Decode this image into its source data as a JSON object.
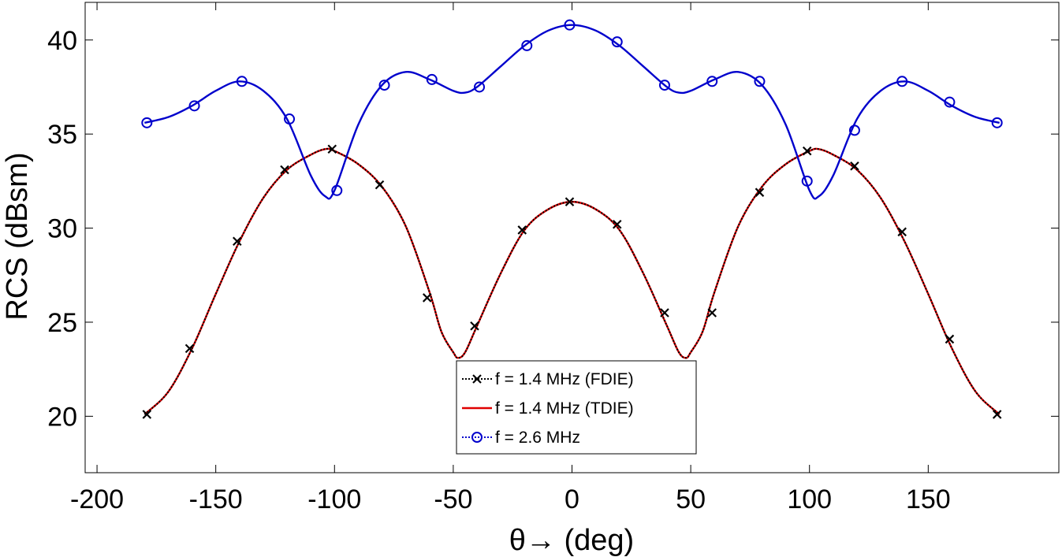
{
  "chart_data": {
    "type": "line",
    "title": "",
    "xlabel": "θ→ (deg)",
    "ylabel": "RCS (dBsm)",
    "xlim": [
      -205,
      205
    ],
    "ylim": [
      17,
      42
    ],
    "xticks": [
      -200,
      -150,
      -100,
      -50,
      0,
      50,
      100,
      150
    ],
    "yticks": [
      20,
      25,
      30,
      35,
      40
    ],
    "xtick_labels": [
      "-200",
      "-150",
      "-100",
      "-50",
      "0",
      "50",
      "100",
      "150"
    ],
    "ytick_labels": [
      "20",
      "25",
      "30",
      "35",
      "40"
    ],
    "grid": false,
    "legend_position": "bottom-center",
    "series": [
      {
        "name": "f = 1.4 MHz (FDIE)",
        "color": "#000000",
        "line_style": "dotted",
        "marker": "x",
        "curve_x": [
          -180,
          -170,
          -160,
          -150,
          -140,
          -130,
          -120,
          -110,
          -104,
          -100,
          -90,
          -80,
          -70,
          -60,
          -55,
          -50,
          -48,
          -45,
          -40,
          -30,
          -20,
          -10,
          0,
          10,
          20,
          30,
          40,
          45,
          48,
          50,
          55,
          60,
          70,
          80,
          90,
          100,
          104,
          110,
          120,
          130,
          140,
          150,
          160,
          170,
          180
        ],
        "curve_y": [
          20.1,
          21.3,
          23.6,
          26.5,
          29.3,
          31.6,
          33.1,
          33.9,
          34.2,
          34.1,
          33.4,
          32.2,
          30.1,
          26.6,
          24.5,
          23.4,
          23.1,
          23.4,
          24.8,
          27.6,
          29.9,
          31.0,
          31.4,
          31.0,
          29.9,
          27.6,
          24.8,
          23.4,
          23.1,
          23.4,
          24.5,
          26.6,
          30.1,
          32.2,
          33.4,
          34.1,
          34.2,
          33.9,
          33.1,
          31.6,
          29.3,
          26.5,
          23.6,
          21.3,
          20.1
        ],
        "marker_x": [
          -179,
          -161,
          -141,
          -121,
          -101,
          -81,
          -61,
          -41,
          -21,
          -1,
          19,
          39,
          59,
          79,
          99,
          119,
          139,
          159,
          179
        ],
        "marker_y": [
          20.1,
          23.6,
          29.3,
          33.1,
          34.2,
          32.3,
          26.3,
          24.8,
          29.9,
          31.4,
          30.2,
          25.5,
          25.5,
          31.9,
          34.1,
          33.3,
          29.8,
          24.1,
          20.1
        ]
      },
      {
        "name": "f = 1.4 MHz (TDIE)",
        "color": "#e00000",
        "line_style": "solid",
        "marker": "none",
        "curve_x": [
          -180,
          -170,
          -160,
          -150,
          -140,
          -130,
          -120,
          -110,
          -104,
          -100,
          -90,
          -80,
          -70,
          -60,
          -55,
          -50,
          -48,
          -45,
          -40,
          -30,
          -20,
          -10,
          0,
          10,
          20,
          30,
          40,
          45,
          48,
          50,
          55,
          60,
          70,
          80,
          90,
          100,
          104,
          110,
          120,
          130,
          140,
          150,
          160,
          170,
          180
        ],
        "curve_y": [
          20.1,
          21.3,
          23.6,
          26.5,
          29.3,
          31.6,
          33.1,
          33.9,
          34.2,
          34.1,
          33.4,
          32.2,
          30.1,
          26.6,
          24.5,
          23.4,
          23.1,
          23.4,
          24.8,
          27.6,
          29.9,
          31.0,
          31.4,
          31.0,
          29.9,
          27.6,
          24.8,
          23.4,
          23.1,
          23.4,
          24.5,
          26.6,
          30.1,
          32.2,
          33.4,
          34.1,
          34.2,
          33.9,
          33.1,
          31.6,
          29.3,
          26.5,
          23.6,
          21.3,
          20.1
        ],
        "marker_x": [],
        "marker_y": []
      },
      {
        "name": "f = 2.6 MHz",
        "color": "#0000cc",
        "line_style": "solid",
        "marker": "o",
        "curve_x": [
          -180,
          -170,
          -160,
          -150,
          -140,
          -130,
          -120,
          -110,
          -104,
          -100,
          -90,
          -80,
          -70,
          -60,
          -50,
          -45,
          -40,
          -30,
          -20,
          -10,
          0,
          10,
          20,
          30,
          40,
          45,
          50,
          60,
          70,
          80,
          90,
          100,
          104,
          110,
          120,
          130,
          140,
          150,
          160,
          170,
          180
        ],
        "curve_y": [
          35.6,
          35.9,
          36.5,
          37.3,
          37.8,
          37.3,
          35.8,
          32.8,
          31.7,
          32.0,
          35.5,
          37.6,
          38.3,
          37.9,
          37.3,
          37.2,
          37.5,
          38.6,
          39.7,
          40.5,
          40.8,
          40.5,
          39.7,
          38.6,
          37.5,
          37.2,
          37.3,
          37.9,
          38.3,
          37.6,
          35.5,
          32.0,
          31.7,
          32.8,
          35.8,
          37.3,
          37.8,
          37.3,
          36.5,
          35.9,
          35.6
        ],
        "marker_x": [
          -179,
          -159,
          -139,
          -119,
          -99,
          -79,
          -59,
          -39,
          -19,
          -1,
          19,
          39,
          59,
          79,
          99,
          119,
          139,
          159,
          179
        ],
        "marker_y": [
          35.6,
          36.5,
          37.8,
          35.8,
          32.0,
          37.6,
          37.9,
          37.5,
          39.7,
          40.8,
          39.9,
          37.6,
          37.8,
          37.8,
          32.5,
          35.2,
          37.8,
          36.7,
          35.6
        ]
      }
    ]
  }
}
